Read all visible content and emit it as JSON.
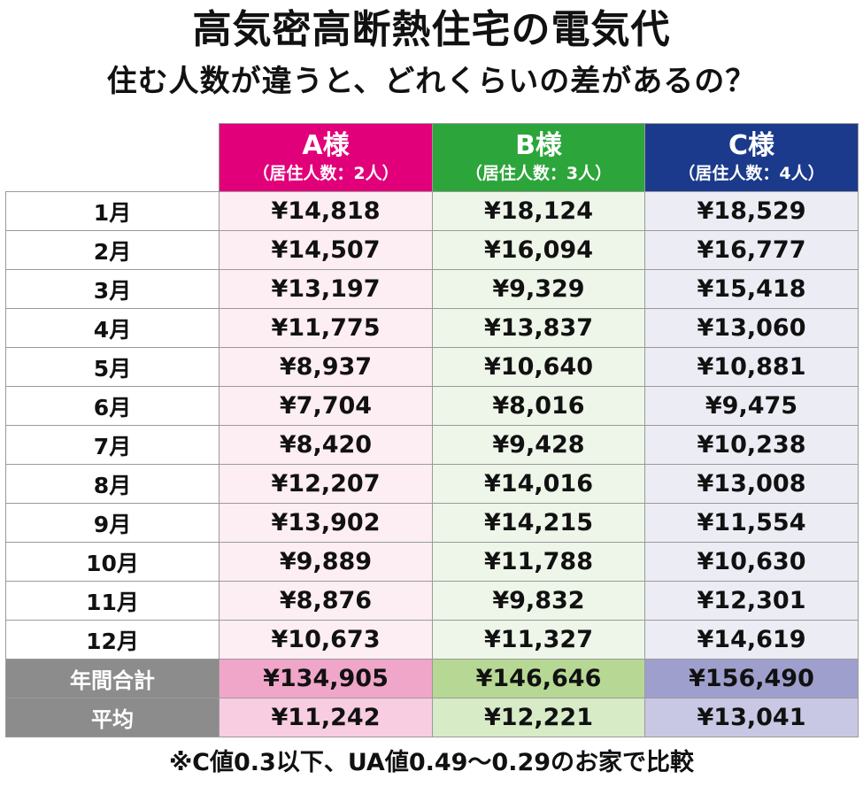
{
  "title": "高気密高断熱住宅の電気代",
  "subtitle": "住む人数が違うと、どれくらいの差があるの？",
  "colors": {
    "a": "#e2007a",
    "b": "#2ca53a",
    "c": "#1b3a8c",
    "summary_label": "#8c8c8c"
  },
  "chart_data": {
    "type": "table",
    "columns": [
      {
        "name": "A様",
        "sub": "（居住人数：2人）"
      },
      {
        "name": "B様",
        "sub": "（居住人数：3人）"
      },
      {
        "name": "C様",
        "sub": "（居住人数：4人）"
      }
    ],
    "rows": [
      {
        "label": "1月",
        "values": [
          "¥14,818",
          "¥18,124",
          "¥18,529"
        ]
      },
      {
        "label": "2月",
        "values": [
          "¥14,507",
          "¥16,094",
          "¥16,777"
        ]
      },
      {
        "label": "3月",
        "values": [
          "¥13,197",
          "¥9,329",
          "¥15,418"
        ]
      },
      {
        "label": "4月",
        "values": [
          "¥11,775",
          "¥13,837",
          "¥13,060"
        ]
      },
      {
        "label": "5月",
        "values": [
          "¥8,937",
          "¥10,640",
          "¥10,881"
        ]
      },
      {
        "label": "6月",
        "values": [
          "¥7,704",
          "¥8,016",
          "¥9,475"
        ]
      },
      {
        "label": "7月",
        "values": [
          "¥8,420",
          "¥9,428",
          "¥10,238"
        ]
      },
      {
        "label": "8月",
        "values": [
          "¥12,207",
          "¥14,016",
          "¥13,008"
        ]
      },
      {
        "label": "9月",
        "values": [
          "¥13,902",
          "¥14,215",
          "¥11,554"
        ]
      },
      {
        "label": "10月",
        "values": [
          "¥9,889",
          "¥11,788",
          "¥10,630"
        ]
      },
      {
        "label": "11月",
        "values": [
          "¥8,876",
          "¥9,832",
          "¥12,301"
        ]
      },
      {
        "label": "12月",
        "values": [
          "¥10,673",
          "¥11,327",
          "¥14,619"
        ]
      }
    ],
    "total": {
      "label": "年間合計",
      "values": [
        "¥134,905",
        "¥146,646",
        "¥156,490"
      ]
    },
    "average": {
      "label": "平均",
      "values": [
        "¥11,242",
        "¥12,221",
        "¥13,041"
      ]
    }
  },
  "footnote": "※C値0.3以下、UA値0.49〜0.29のお家で比較"
}
